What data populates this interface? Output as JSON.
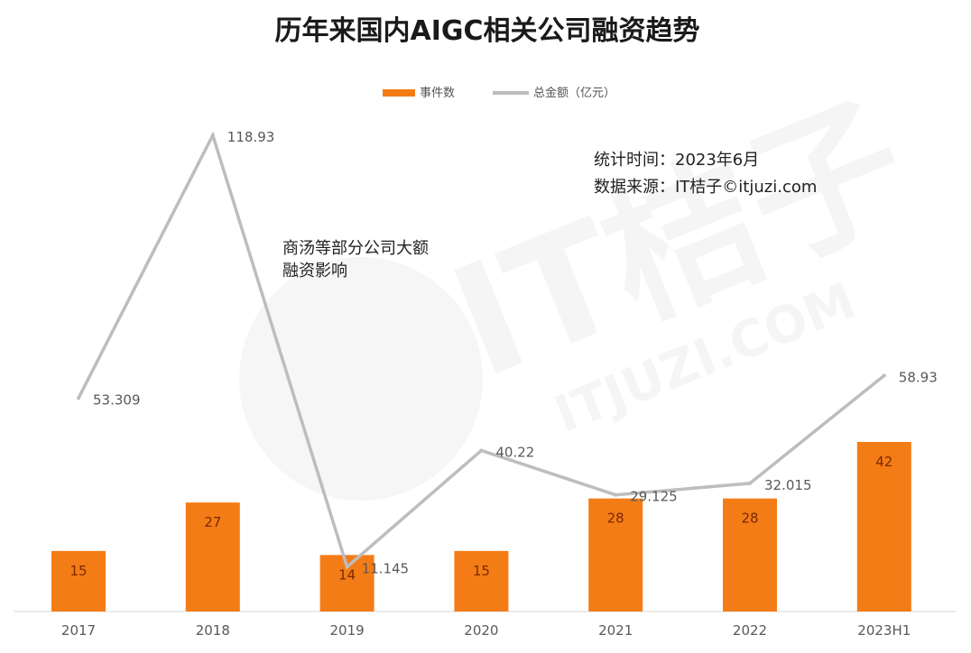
{
  "colors": {
    "bar": "#F47C17",
    "line": "#BDBDBD",
    "axis": "#D9D9D9"
  },
  "chart_data": {
    "type": "bar",
    "title": "历年来国内AIGC相关公司融资趋势",
    "categories": [
      "2017",
      "2018",
      "2019",
      "2020",
      "2021",
      "2022",
      "2023H1"
    ],
    "series": [
      {
        "name": "事件数",
        "type": "bar",
        "values": [
          15,
          27,
          14,
          15,
          28,
          28,
          42
        ]
      },
      {
        "name": "总金额（亿元）",
        "type": "line",
        "values": [
          53.309,
          118.93,
          11.145,
          40.22,
          29.125,
          32.015,
          58.93
        ]
      }
    ],
    "value_labels": {
      "bar": [
        "15",
        "27",
        "14",
        "15",
        "28",
        "28",
        "42"
      ],
      "line": [
        "53.309",
        "118.93",
        "11.145",
        "40.22",
        "29.125",
        "32.015",
        "58.93"
      ]
    },
    "legend_position": "top",
    "bar_ylim": [
      0,
      75
    ],
    "line_ylim": [
      0,
      128
    ],
    "grid": false,
    "annotation": {
      "line1": "商汤等部分公司大额",
      "line2": "融资影响"
    },
    "info": {
      "stat_time": "统计时间：2023年6月",
      "source": "数据来源：IT桔子©itjuzi.com"
    },
    "watermark": {
      "text1": "IT桔子",
      "text2": "ITJUZI.COM"
    }
  }
}
